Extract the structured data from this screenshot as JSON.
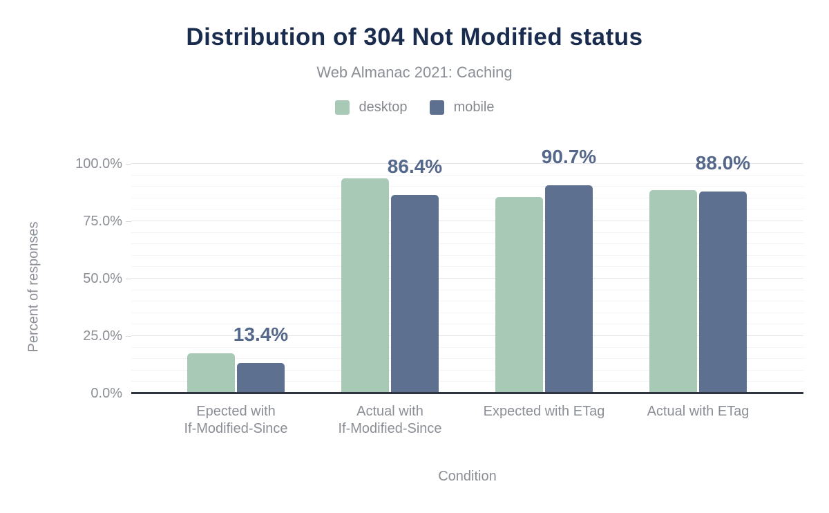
{
  "header": {
    "title": "Distribution of 304 Not Modified status",
    "subtitle": "Web Almanac 2021: Caching"
  },
  "legend": {
    "position": "top",
    "items": [
      {
        "label": "desktop",
        "color": "#a7c9b6"
      },
      {
        "label": "mobile",
        "color": "#5e7090"
      }
    ]
  },
  "chart_data": {
    "type": "bar",
    "title": "Distribution of 304 Not Modified status",
    "subtitle": "Web Almanac 2021: Caching",
    "categories": [
      "Epected with\nIf-Modified-Since",
      "Actual with\nIf-Modified-Since",
      "Expected with ETag",
      "Actual with ETag"
    ],
    "series": [
      {
        "name": "desktop",
        "color": "#a7c9b6",
        "values": [
          17.5,
          93.6,
          85.4,
          88.6
        ]
      },
      {
        "name": "mobile",
        "color": "#5e7090",
        "values": [
          13.4,
          86.4,
          90.7,
          88.0
        ]
      }
    ],
    "annotations": {
      "series": "mobile",
      "labels": [
        "13.4%",
        "86.4%",
        "90.7%",
        "88.0%"
      ]
    },
    "xlabel": "Condition",
    "ylabel": "Percent of responses",
    "ylim": [
      0,
      100
    ],
    "yticks": [
      "0.0%",
      "25.0%",
      "50.0%",
      "75.0%",
      "100.0%"
    ],
    "grid": {
      "minor_step": 5,
      "major_step": 25,
      "visible": true
    },
    "legend_position": "top"
  },
  "colors": {
    "title": "#1a2c4e",
    "subtitle_text": "#8a8e95",
    "annotation_text": "#55678a",
    "axis_line": "#2e3440",
    "grid_major": "#e6e6ea",
    "grid_minor": "#f3f3f5"
  }
}
